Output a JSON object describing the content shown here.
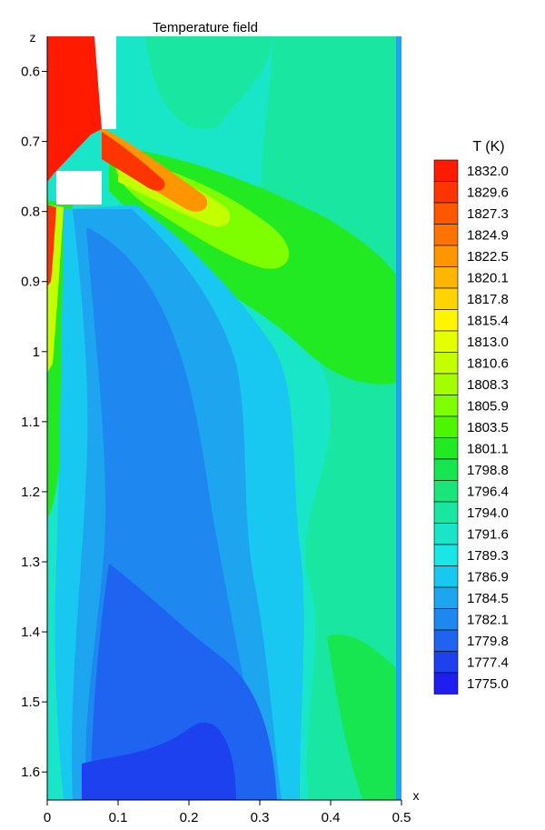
{
  "chart_data": {
    "type": "heatmap",
    "title": "Temperature field",
    "xlabel": "x",
    "ylabel": "z",
    "xlim": [
      0,
      0.5
    ],
    "ylim": [
      1.64,
      0.55
    ],
    "x_ticks": [
      "0",
      "0.1",
      "0.2",
      "0.3",
      "0.4",
      "0.5"
    ],
    "y_ticks": [
      "0.6",
      "0.7",
      "0.8",
      "0.9",
      "1",
      "1.1",
      "1.2",
      "1.3",
      "1.4",
      "1.5",
      "1.6"
    ],
    "colorbar": {
      "label": "T (K)",
      "levels": [
        "1832.0",
        "1829.6",
        "1827.3",
        "1824.9",
        "1822.5",
        "1820.1",
        "1817.8",
        "1815.4",
        "1813.0",
        "1810.6",
        "1808.3",
        "1805.9",
        "1803.5",
        "1801.1",
        "1798.8",
        "1796.4",
        "1794.0",
        "1791.6",
        "1789.3",
        "1786.9",
        "1784.5",
        "1782.1",
        "1779.8",
        "1777.4",
        "1775.0"
      ],
      "colors": [
        "#ff1a00",
        "#ff3500",
        "#ff5600",
        "#ff7400",
        "#ff9500",
        "#ffb600",
        "#ffd400",
        "#fff500",
        "#e6ff00",
        "#c4ff00",
        "#a3ff00",
        "#7dff00",
        "#4ef500",
        "#22ea22",
        "#18e650",
        "#19e67a",
        "#19e6a0",
        "#19e6c8",
        "#19e6e6",
        "#19c8f0",
        "#1ea5f0",
        "#1e87f0",
        "#1e64f0",
        "#1e41f0",
        "#1e1ef0"
      ]
    }
  }
}
